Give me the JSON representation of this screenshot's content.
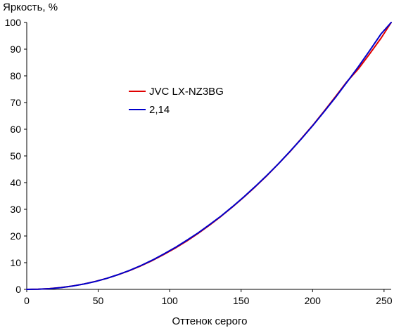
{
  "chart_data": {
    "type": "line",
    "title": "",
    "xlabel": "Оттенок серого",
    "ylabel": "Яркость, %",
    "xlim": [
      0,
      255
    ],
    "ylim": [
      0,
      100
    ],
    "xticks": [
      0,
      50,
      100,
      150,
      200,
      250
    ],
    "yticks": [
      0,
      10,
      20,
      30,
      40,
      50,
      60,
      70,
      80,
      90,
      100
    ],
    "grid": false,
    "legend_position": "center-left",
    "series": [
      {
        "name": "JVC LX-NZ3BG",
        "color": "#e00000",
        "x": [
          0,
          8,
          16,
          24,
          32,
          40,
          48,
          56,
          64,
          72,
          80,
          88,
          96,
          104,
          112,
          120,
          128,
          136,
          144,
          152,
          160,
          168,
          176,
          184,
          192,
          200,
          208,
          216,
          224,
          232,
          240,
          248,
          255
        ],
        "values": [
          0.0,
          0.07,
          0.29,
          0.68,
          1.26,
          2.02,
          2.97,
          4.13,
          5.49,
          7.06,
          8.85,
          10.85,
          13.1,
          15.5,
          18.1,
          21.0,
          24.1,
          27.4,
          30.9,
          34.6,
          38.5,
          42.6,
          47.0,
          51.5,
          56.4,
          61.4,
          66.7,
          72.2,
          77.8,
          82.6,
          88.3,
          94.2,
          100.0
        ]
      },
      {
        "name": "2,14",
        "color": "#0000cc",
        "x": [
          0,
          8,
          16,
          24,
          32,
          40,
          48,
          56,
          64,
          72,
          80,
          88,
          96,
          104,
          112,
          120,
          128,
          136,
          144,
          152,
          160,
          168,
          176,
          184,
          192,
          200,
          208,
          216,
          224,
          232,
          240,
          248,
          255
        ],
        "values": [
          0.0,
          0.06,
          0.27,
          0.66,
          1.23,
          1.99,
          2.96,
          4.14,
          5.52,
          7.13,
          8.96,
          11.0,
          13.3,
          15.7,
          18.4,
          21.2,
          24.3,
          27.5,
          31.0,
          34.7,
          38.6,
          42.7,
          47.0,
          51.6,
          56.3,
          61.3,
          66.5,
          71.9,
          77.6,
          83.4,
          89.5,
          95.8,
          100.0
        ]
      }
    ]
  }
}
